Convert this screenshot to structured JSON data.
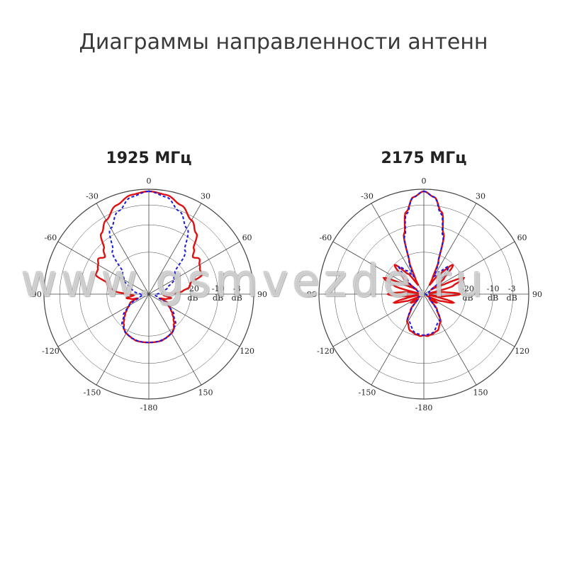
{
  "page": {
    "title": "Диаграммы направленности антенн",
    "watermark": "www.gsmvezde.ru"
  },
  "colors": {
    "horizontal": "#e01010",
    "vertical": "#1a1ae0",
    "grid": "#444444"
  },
  "chart_data": [
    {
      "type": "polar",
      "title": "1925 МГц",
      "angle_ticks": [
        "0",
        "30",
        "60",
        "90",
        "120",
        "150",
        "-180",
        "-150",
        "-120",
        "-90",
        "-60",
        "-30"
      ],
      "radial_labels": [
        {
          "value": "-3",
          "unit": "dB"
        },
        {
          "value": "-10",
          "unit": "dB"
        },
        {
          "value": "-20",
          "unit": "dB"
        }
      ],
      "series": [
        {
          "style": "solid",
          "color": "#e01010",
          "angles": [
            0,
            10,
            20,
            30,
            38,
            45,
            50,
            55,
            60,
            65,
            70,
            75,
            80,
            85,
            90,
            95,
            100,
            105,
            110,
            115,
            120,
            125,
            130,
            135,
            140,
            145,
            150,
            155,
            160,
            165,
            170,
            175,
            180
          ],
          "levels": [
            1.0,
            0.98,
            0.92,
            0.83,
            0.75,
            0.62,
            0.56,
            0.6,
            0.57,
            0.55,
            0.55,
            0.42,
            0.4,
            0.33,
            0.2,
            0.15,
            0.22,
            0.18,
            0.12,
            0.2,
            0.22,
            0.26,
            0.3,
            0.34,
            0.38,
            0.42,
            0.44,
            0.45,
            0.46,
            0.47,
            0.47,
            0.47,
            0.47
          ]
        },
        {
          "style": "dashed",
          "color": "#1a1ae0",
          "angles": [
            0,
            10,
            20,
            30,
            40,
            50,
            60,
            70,
            80,
            90,
            100,
            110,
            120,
            130,
            140,
            150,
            160,
            170,
            180
          ],
          "levels": [
            1.0,
            0.96,
            0.86,
            0.74,
            0.55,
            0.33,
            0.28,
            0.2,
            0.14,
            0.08,
            0.06,
            0.1,
            0.22,
            0.32,
            0.4,
            0.44,
            0.46,
            0.47,
            0.47
          ]
        }
      ]
    },
    {
      "type": "polar",
      "title": "2175 МГц",
      "angle_ticks": [
        "0",
        "30",
        "60",
        "90",
        "120",
        "150",
        "-180",
        "-150",
        "-120",
        "-90",
        "-60",
        "-30"
      ],
      "radial_labels": [
        {
          "value": "-3",
          "unit": "dB"
        },
        {
          "value": "-10",
          "unit": "dB"
        },
        {
          "value": "-20",
          "unit": "dB"
        }
      ],
      "series": [
        {
          "style": "solid",
          "color": "#e01010",
          "angles": [
            0,
            6,
            12,
            18,
            24,
            28,
            32,
            38,
            45,
            52,
            58,
            62,
            68,
            74,
            80,
            84,
            90,
            96,
            100,
            106,
            112,
            118,
            124,
            132,
            140,
            150,
            160,
            170,
            175,
            180
          ],
          "levels": [
            1.0,
            0.95,
            0.82,
            0.62,
            0.35,
            0.18,
            0.1,
            0.25,
            0.4,
            0.25,
            0.08,
            0.15,
            0.42,
            0.3,
            0.05,
            0.2,
            0.35,
            0.2,
            0.05,
            0.3,
            0.18,
            0.03,
            0.15,
            0.08,
            0.2,
            0.32,
            0.38,
            0.4,
            0.41,
            0.4
          ]
        },
        {
          "style": "dashed",
          "color": "#1a1ae0",
          "angles": [
            0,
            6,
            12,
            18,
            24,
            30,
            36,
            42,
            50,
            60,
            70,
            80,
            90,
            110,
            130,
            150,
            170,
            180
          ],
          "levels": [
            1.0,
            0.95,
            0.8,
            0.6,
            0.35,
            0.2,
            0.28,
            0.36,
            0.2,
            0.08,
            0.05,
            0.03,
            0.02,
            0.03,
            0.08,
            0.3,
            0.39,
            0.4
          ]
        }
      ]
    }
  ]
}
